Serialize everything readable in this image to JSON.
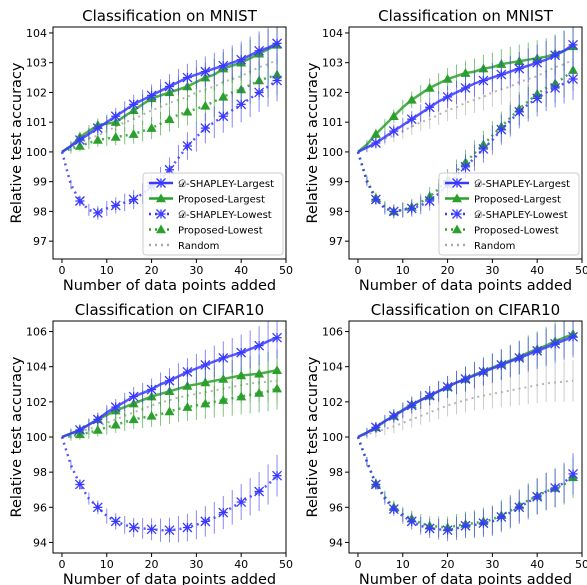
{
  "chart_data": [
    {
      "type": "line",
      "title": "Classification on MNIST",
      "xlabel": "Number of data points added",
      "ylabel": "Relative test accuracy",
      "xlim": [
        -2,
        50
      ],
      "ylim": [
        96.4,
        104.2
      ],
      "xticks": [
        0,
        10,
        20,
        30,
        40,
        50
      ],
      "yticks": [
        97,
        98,
        99,
        100,
        101,
        102,
        103,
        104
      ],
      "legend": "lower-right",
      "x": [
        0,
        2,
        4,
        6,
        8,
        10,
        12,
        14,
        16,
        18,
        20,
        22,
        24,
        26,
        28,
        30,
        32,
        34,
        36,
        38,
        40,
        42,
        44,
        46,
        48
      ],
      "series": [
        {
          "name": "𝒟-SHAPLEY-Largest",
          "style": "largest",
          "color": "#3a3aff",
          "values": [
            100,
            100.2,
            100.4,
            100.6,
            100.8,
            101,
            101.2,
            101.4,
            101.6,
            101.75,
            101.9,
            102.05,
            102.2,
            102.35,
            102.5,
            102.6,
            102.7,
            102.8,
            102.9,
            103.0,
            103.1,
            103.25,
            103.4,
            103.5,
            103.65
          ]
        },
        {
          "name": "Proposed-Largest",
          "style": "largest",
          "color": "#2ca02c",
          "values": [
            100,
            100.2,
            100.5,
            100.7,
            100.9,
            100.95,
            101.0,
            101.2,
            101.4,
            101.6,
            101.8,
            101.9,
            102.0,
            102.1,
            102.2,
            102.35,
            102.5,
            102.6,
            102.8,
            102.9,
            103.0,
            103.15,
            103.3,
            103.45,
            103.6
          ]
        },
        {
          "name": "𝒟-SHAPLEY-Lowest",
          "style": "lowest",
          "color": "#3a3aff",
          "values": [
            100,
            98.9,
            98.35,
            98.05,
            97.95,
            98.1,
            98.2,
            98.3,
            98.4,
            98.6,
            98.85,
            99.1,
            99.4,
            99.8,
            100.2,
            100.5,
            100.8,
            101.0,
            101.2,
            101.4,
            101.6,
            101.8,
            102.0,
            102.2,
            102.4
          ]
        },
        {
          "name": "Proposed-Lowest",
          "style": "lowest",
          "color": "#2ca02c",
          "values": [
            100,
            100.1,
            100.2,
            100.3,
            100.4,
            100.45,
            100.5,
            100.55,
            100.6,
            100.7,
            100.8,
            100.95,
            101.1,
            101.25,
            101.35,
            101.45,
            101.55,
            101.7,
            101.85,
            102.0,
            102.1,
            102.25,
            102.4,
            102.5,
            102.6
          ]
        },
        {
          "name": "Random",
          "style": "random",
          "color": "#a9a9a9",
          "values": [
            100,
            100.15,
            100.3,
            100.45,
            100.55,
            100.7,
            100.85,
            101.0,
            101.1,
            101.25,
            101.4,
            101.5,
            101.65,
            101.75,
            101.85,
            102.0,
            102.1,
            102.2,
            102.35,
            102.45,
            102.55,
            102.7,
            102.85,
            102.95,
            103.1
          ]
        }
      ]
    },
    {
      "type": "line",
      "title": "Classification on MNIST",
      "xlabel": "Number of data points added",
      "ylabel": "Relative test accuracy",
      "xlim": [
        -2,
        50
      ],
      "ylim": [
        96.4,
        104.2
      ],
      "xticks": [
        0,
        10,
        20,
        30,
        40,
        50
      ],
      "yticks": [
        97,
        98,
        99,
        100,
        101,
        102,
        103,
        104
      ],
      "legend": "lower-right",
      "x": [
        0,
        2,
        4,
        6,
        8,
        10,
        12,
        14,
        16,
        18,
        20,
        22,
        24,
        26,
        28,
        30,
        32,
        34,
        36,
        38,
        40,
        42,
        44,
        46,
        48
      ],
      "series": [
        {
          "name": "𝒟-SHAPLEY-Largest",
          "style": "largest",
          "color": "#3a3aff",
          "values": [
            100,
            100.15,
            100.3,
            100.5,
            100.7,
            100.9,
            101.1,
            101.3,
            101.5,
            101.7,
            101.85,
            102.0,
            102.15,
            102.3,
            102.4,
            102.5,
            102.6,
            102.7,
            102.8,
            102.9,
            103.0,
            103.1,
            103.25,
            103.4,
            103.6
          ]
        },
        {
          "name": "Proposed-Largest",
          "style": "largest",
          "color": "#2ca02c",
          "values": [
            100,
            100.25,
            100.6,
            100.9,
            101.2,
            101.5,
            101.75,
            101.95,
            102.15,
            102.3,
            102.45,
            102.55,
            102.65,
            102.7,
            102.8,
            102.85,
            102.95,
            103.0,
            103.05,
            103.1,
            103.15,
            103.2,
            103.3,
            103.4,
            103.55
          ]
        },
        {
          "name": "𝒟-SHAPLEY-Lowest",
          "style": "lowest",
          "color": "#3a3aff",
          "values": [
            100,
            99.0,
            98.4,
            98.1,
            98.0,
            98.05,
            98.1,
            98.2,
            98.35,
            98.6,
            98.9,
            99.2,
            99.5,
            99.8,
            100.1,
            100.4,
            100.75,
            101.05,
            101.35,
            101.6,
            101.8,
            102.0,
            102.15,
            102.3,
            102.45
          ]
        },
        {
          "name": "Proposed-Lowest",
          "style": "lowest",
          "color": "#2ca02c",
          "values": [
            100,
            99.05,
            98.45,
            98.15,
            98.0,
            98.05,
            98.15,
            98.3,
            98.5,
            98.75,
            99.05,
            99.35,
            99.65,
            99.95,
            100.25,
            100.55,
            100.85,
            101.15,
            101.45,
            101.7,
            101.95,
            102.15,
            102.3,
            102.5,
            102.75
          ]
        },
        {
          "name": "Random",
          "style": "random",
          "color": "#a9a9a9",
          "values": [
            100,
            100.15,
            100.3,
            100.45,
            100.55,
            100.7,
            100.85,
            101.0,
            101.1,
            101.25,
            101.4,
            101.5,
            101.65,
            101.75,
            101.85,
            102.0,
            102.1,
            102.2,
            102.35,
            102.45,
            102.55,
            102.7,
            102.85,
            102.95,
            103.1
          ]
        }
      ]
    },
    {
      "type": "line",
      "title": "Classification on CIFAR10",
      "xlabel": "Number of data points added",
      "ylabel": "Relative test accuracy",
      "xlim": [
        -2,
        50
      ],
      "ylim": [
        93.4,
        106.6
      ],
      "xticks": [
        0,
        10,
        20,
        30,
        40,
        50
      ],
      "yticks": [
        94,
        96,
        98,
        100,
        102,
        104,
        106
      ],
      "legend": "none",
      "x": [
        0,
        2,
        4,
        6,
        8,
        10,
        12,
        14,
        16,
        18,
        20,
        22,
        24,
        26,
        28,
        30,
        32,
        34,
        36,
        38,
        40,
        42,
        44,
        46,
        48
      ],
      "series": [
        {
          "name": "𝒟-SHAPLEY-Largest",
          "style": "largest",
          "color": "#3a3aff",
          "values": [
            100,
            100.2,
            100.4,
            100.7,
            101.0,
            101.4,
            101.7,
            102.0,
            102.3,
            102.5,
            102.7,
            103.0,
            103.2,
            103.45,
            103.7,
            103.9,
            104.1,
            104.3,
            104.5,
            104.65,
            104.8,
            105.0,
            105.2,
            105.45,
            105.65
          ]
        },
        {
          "name": "Proposed-Largest",
          "style": "largest",
          "color": "#2ca02c",
          "values": [
            100,
            100.2,
            100.4,
            100.7,
            101.0,
            101.25,
            101.5,
            101.7,
            101.9,
            102.1,
            102.3,
            102.45,
            102.6,
            102.75,
            102.9,
            103.0,
            103.1,
            103.2,
            103.3,
            103.4,
            103.5,
            103.55,
            103.6,
            103.7,
            103.8
          ]
        },
        {
          "name": "𝒟-SHAPLEY-Lowest",
          "style": "lowest",
          "color": "#3a3aff",
          "values": [
            100,
            98.4,
            97.3,
            96.5,
            96.0,
            95.5,
            95.2,
            95.0,
            94.85,
            94.8,
            94.75,
            94.7,
            94.7,
            94.75,
            94.85,
            95.0,
            95.2,
            95.4,
            95.7,
            96.0,
            96.3,
            96.6,
            96.9,
            97.3,
            97.8
          ]
        },
        {
          "name": "Proposed-Lowest",
          "style": "lowest",
          "color": "#2ca02c",
          "values": [
            100,
            100.05,
            100.15,
            100.25,
            100.4,
            100.55,
            100.7,
            100.85,
            101.0,
            101.1,
            101.2,
            101.3,
            101.45,
            101.6,
            101.7,
            101.8,
            101.9,
            102.0,
            102.1,
            102.2,
            102.3,
            102.4,
            102.5,
            102.6,
            102.75
          ]
        },
        {
          "name": "Random",
          "style": "random",
          "color": "#a9a9a9",
          "values": [
            100,
            100.15,
            100.3,
            100.45,
            100.6,
            100.8,
            101.0,
            101.2,
            101.4,
            101.6,
            101.8,
            101.95,
            102.1,
            102.25,
            102.35,
            102.45,
            102.55,
            102.65,
            102.75,
            102.85,
            102.95,
            103.05,
            103.1,
            103.15,
            103.2
          ]
        }
      ]
    },
    {
      "type": "line",
      "title": "Classification on CIFAR10",
      "xlabel": "Number of data points added",
      "ylabel": "Relative test accuracy",
      "xlim": [
        -2,
        50
      ],
      "ylim": [
        93.4,
        106.6
      ],
      "xticks": [
        0,
        10,
        20,
        30,
        40,
        50
      ],
      "yticks": [
        94,
        96,
        98,
        100,
        102,
        104,
        106
      ],
      "legend": "none",
      "x": [
        0,
        2,
        4,
        6,
        8,
        10,
        12,
        14,
        16,
        18,
        20,
        22,
        24,
        26,
        28,
        30,
        32,
        34,
        36,
        38,
        40,
        42,
        44,
        46,
        48
      ],
      "series": [
        {
          "name": "𝒟-SHAPLEY-Largest",
          "style": "largest",
          "color": "#3a3aff",
          "values": [
            100,
            100.25,
            100.55,
            100.9,
            101.2,
            101.5,
            101.8,
            102.1,
            102.35,
            102.6,
            102.85,
            103.1,
            103.3,
            103.5,
            103.7,
            103.9,
            104.1,
            104.3,
            104.5,
            104.7,
            104.9,
            105.1,
            105.3,
            105.5,
            105.7
          ]
        },
        {
          "name": "Proposed-Largest",
          "style": "largest",
          "color": "#2ca02c",
          "values": [
            100,
            100.25,
            100.55,
            100.9,
            101.2,
            101.55,
            101.85,
            102.1,
            102.35,
            102.6,
            102.85,
            103.1,
            103.3,
            103.55,
            103.75,
            103.95,
            104.15,
            104.35,
            104.55,
            104.8,
            105.0,
            105.2,
            105.45,
            105.65,
            105.85
          ]
        },
        {
          "name": "𝒟-SHAPLEY-Lowest",
          "style": "lowest",
          "color": "#3a3aff",
          "values": [
            100,
            98.6,
            97.3,
            96.5,
            95.9,
            95.5,
            95.2,
            94.95,
            94.8,
            94.75,
            94.7,
            94.8,
            94.95,
            95.0,
            95.1,
            95.2,
            95.45,
            95.7,
            96.0,
            96.3,
            96.6,
            96.9,
            97.1,
            97.4,
            97.9
          ]
        },
        {
          "name": "Proposed-Lowest",
          "style": "lowest",
          "color": "#2ca02c",
          "values": [
            100,
            98.6,
            97.35,
            96.6,
            96.0,
            95.6,
            95.35,
            95.1,
            94.95,
            94.9,
            94.85,
            94.95,
            95.05,
            95.1,
            95.2,
            95.3,
            95.55,
            95.8,
            96.1,
            96.4,
            96.65,
            96.9,
            97.1,
            97.3,
            97.7
          ]
        },
        {
          "name": "Random",
          "style": "random",
          "color": "#a9a9a9",
          "values": [
            100,
            100.15,
            100.3,
            100.45,
            100.6,
            100.8,
            101.0,
            101.2,
            101.4,
            101.6,
            101.8,
            101.95,
            102.1,
            102.25,
            102.35,
            102.45,
            102.55,
            102.65,
            102.75,
            102.85,
            102.95,
            103.05,
            103.1,
            103.15,
            103.2
          ]
        }
      ]
    }
  ]
}
